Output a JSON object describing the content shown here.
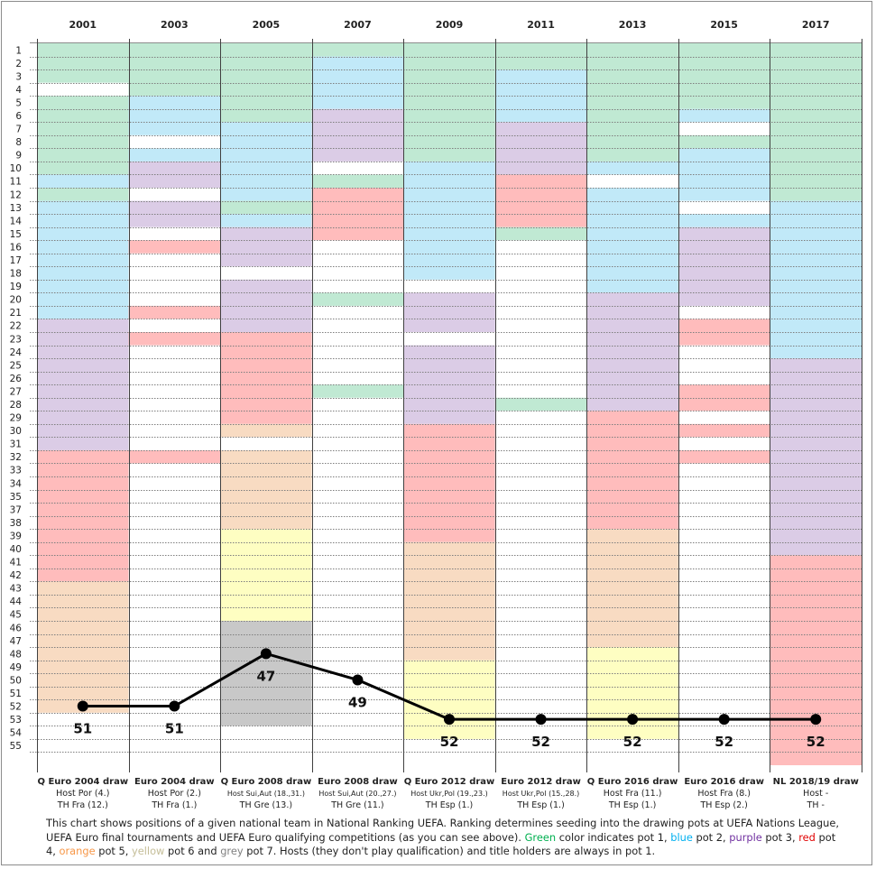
{
  "chart_data": {
    "type": "heatmap",
    "title": "",
    "years": [
      "2001",
      "2003",
      "2005",
      "2007",
      "2009",
      "2011",
      "2013",
      "2015",
      "2017"
    ],
    "row_labels": [
      "1",
      "2",
      "3",
      "4",
      "5",
      "6",
      "7",
      "8",
      "9",
      "10",
      "11",
      "12",
      "13",
      "14",
      "15",
      "16",
      "17",
      "18",
      "19",
      "20",
      "21",
      "22",
      "23",
      "24",
      "25",
      "26",
      "27",
      "28",
      "29",
      "30",
      "31",
      "32",
      "33",
      "34",
      "35",
      "37",
      "38",
      "39",
      "40",
      "41",
      "42",
      "43",
      "44",
      "45",
      "46",
      "47",
      "48",
      "49",
      "50",
      "51",
      "52",
      "53",
      "54",
      "55"
    ],
    "rank_range": [
      1,
      55
    ],
    "pot_colors": {
      "1": "#c0e9d3",
      "2": "#c1e9f8",
      "3": "#dbcce6",
      "4": "#ffbcbc",
      "5": "#f8dbc2",
      "6": "#fefec2",
      "7": "#c8c8c8"
    },
    "pot_names": {
      "1": "green",
      "2": "blue",
      "3": "purple",
      "4": "red",
      "5": "orange",
      "6": "yellow",
      "7": "grey"
    },
    "columns": [
      {
        "year": "2001",
        "draw": "Q Euro 2004 draw",
        "host": "Host Por (4.)",
        "th": "TH Fra (12.)",
        "value": 51,
        "segments": [
          [
            1,
            3,
            1
          ],
          [
            5,
            10,
            1
          ],
          [
            11,
            11,
            2
          ],
          [
            12,
            12,
            1
          ],
          [
            13,
            21,
            2
          ],
          [
            22,
            31,
            3
          ],
          [
            32,
            41,
            4
          ],
          [
            42,
            51,
            5
          ]
        ]
      },
      {
        "year": "2003",
        "draw": "Euro 2004 draw",
        "host": "Host Por (2.)",
        "th": "TH Fra (1.)",
        "value": 51,
        "segments": [
          [
            1,
            4,
            1
          ],
          [
            5,
            7,
            2
          ],
          [
            9,
            9,
            2
          ],
          [
            10,
            11,
            3
          ],
          [
            13,
            14,
            3
          ],
          [
            16,
            16,
            4
          ],
          [
            21,
            21,
            4
          ],
          [
            23,
            23,
            4
          ],
          [
            32,
            32,
            4
          ]
        ]
      },
      {
        "year": "2005",
        "draw": "Q Euro 2008 draw",
        "host": "Host Sui,Aut (18.,31.)",
        "th": "TH Gre (13.)",
        "value": 47,
        "segments": [
          [
            1,
            6,
            1
          ],
          [
            7,
            12,
            2
          ],
          [
            13,
            13,
            1
          ],
          [
            14,
            14,
            2
          ],
          [
            15,
            17,
            3
          ],
          [
            19,
            22,
            3
          ],
          [
            23,
            29,
            4
          ],
          [
            30,
            30,
            5
          ],
          [
            32,
            37,
            5
          ],
          [
            38,
            44,
            6
          ],
          [
            45,
            52,
            7
          ]
        ]
      },
      {
        "year": "2007",
        "draw": "Euro 2008 draw",
        "host": "Host Sui,Aut (20.,27.)",
        "th": "TH Gre (11.)",
        "value": 49,
        "segments": [
          [
            1,
            1,
            1
          ],
          [
            2,
            5,
            2
          ],
          [
            6,
            9,
            3
          ],
          [
            11,
            11,
            1
          ],
          [
            12,
            15,
            4
          ],
          [
            20,
            20,
            1
          ],
          [
            27,
            27,
            1
          ]
        ]
      },
      {
        "year": "2009",
        "draw": "Q Euro 2012 draw",
        "host": "Host Ukr,Pol (19.,23.)",
        "th": "TH Esp (1.)",
        "value": 52,
        "segments": [
          [
            1,
            9,
            1
          ],
          [
            10,
            18,
            2
          ],
          [
            20,
            22,
            3
          ],
          [
            24,
            29,
            3
          ],
          [
            30,
            38,
            4
          ],
          [
            39,
            47,
            5
          ],
          [
            48,
            53,
            6
          ]
        ]
      },
      {
        "year": "2011",
        "draw": "Euro 2012 draw",
        "host": "Host Ukr,Pol (15.,28.)",
        "th": "TH Esp (1.)",
        "value": 52,
        "segments": [
          [
            1,
            2,
            1
          ],
          [
            3,
            6,
            2
          ],
          [
            7,
            10,
            3
          ],
          [
            11,
            14,
            4
          ],
          [
            15,
            15,
            1
          ],
          [
            28,
            28,
            1
          ]
        ]
      },
      {
        "year": "2013",
        "draw": "Q Euro 2016 draw",
        "host": "Host Fra (11.)",
        "th": "TH Esp (1.)",
        "value": 52,
        "segments": [
          [
            1,
            9,
            1
          ],
          [
            10,
            10,
            2
          ],
          [
            12,
            19,
            2
          ],
          [
            20,
            28,
            3
          ],
          [
            29,
            37,
            4
          ],
          [
            38,
            46,
            5
          ],
          [
            47,
            53,
            6
          ]
        ]
      },
      {
        "year": "2015",
        "draw": "Euro 2016 draw",
        "host": "Host Fra (8.)",
        "th": "TH Esp (2.)",
        "value": 52,
        "segments": [
          [
            1,
            5,
            1
          ],
          [
            6,
            6,
            2
          ],
          [
            8,
            8,
            1
          ],
          [
            9,
            12,
            2
          ],
          [
            14,
            14,
            2
          ],
          [
            15,
            20,
            3
          ],
          [
            22,
            23,
            4
          ],
          [
            27,
            28,
            4
          ],
          [
            30,
            30,
            4
          ],
          [
            32,
            32,
            4
          ]
        ]
      },
      {
        "year": "2017",
        "draw": "NL 2018/19 draw",
        "host": "Host -",
        "th": "TH -",
        "value": 52,
        "segments": [
          [
            1,
            12,
            1
          ],
          [
            13,
            24,
            2
          ],
          [
            25,
            39,
            3
          ],
          [
            40,
            55,
            4
          ]
        ]
      }
    ],
    "series": [
      {
        "name": "team position",
        "values": [
          51,
          51,
          47,
          49,
          52,
          52,
          52,
          52,
          52
        ]
      }
    ],
    "grid": true,
    "legend": "caption below chart"
  },
  "caption": {
    "text1": "This chart shows positions of a given national team in National Ranking UEFA.  Ranking determines seeding into the drawing pots at UEFA Nations League, UEFA Euro final tournaments and UEFA Euro qualifying competitions (as you can see above). ",
    "green": "Green",
    "t_green": " color indicates pot 1, ",
    "blue": "blue",
    "t_blue": " pot 2, ",
    "purple": "purple",
    "t_purple": " pot 3, ",
    "red": "red",
    "t_red": " pot 4, ",
    "orange": "orange",
    "t_orange": " pot 5, ",
    "yellow": "yellow",
    "t_yellow": " pot 6 and ",
    "grey": "grey",
    "t_grey": " pot 7. Hosts (they don't play qualification) and title holders are always  in pot 1."
  }
}
